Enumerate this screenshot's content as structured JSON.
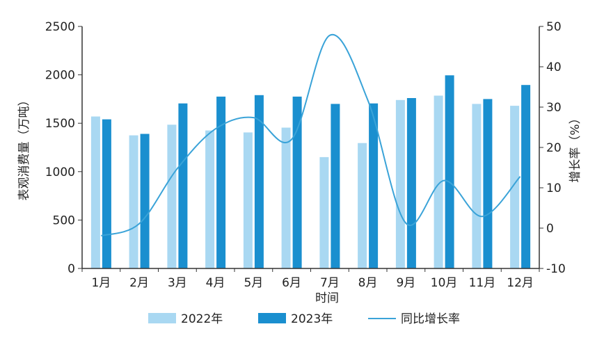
{
  "chart_data": {
    "type": "bar",
    "title": "",
    "xlabel": "时间",
    "ylabel": "表观消费量（万吨）",
    "y2label": "增长率（%）",
    "categories": [
      "1月",
      "2月",
      "3月",
      "4月",
      "5月",
      "6月",
      "7月",
      "8月",
      "9月",
      "10月",
      "11月",
      "12月"
    ],
    "ylim": [
      0,
      2500
    ],
    "yticks": [
      0,
      500,
      1000,
      1500,
      2000,
      2500
    ],
    "y2lim": [
      -10,
      50
    ],
    "y2ticks": [
      -10,
      0,
      10,
      20,
      30,
      40,
      50
    ],
    "grid": false,
    "legend_position": "bottom",
    "series": [
      {
        "name": "2022年",
        "kind": "bar",
        "color": "#a9d8f2",
        "values": [
          1570,
          1375,
          1485,
          1425,
          1405,
          1455,
          1150,
          1295,
          1740,
          1785,
          1700,
          1680
        ]
      },
      {
        "name": "2023年",
        "kind": "bar",
        "color": "#1a8fcf",
        "values": [
          1540,
          1390,
          1705,
          1775,
          1790,
          1775,
          1700,
          1705,
          1760,
          1995,
          1750,
          1895
        ]
      },
      {
        "name": "同比增长率",
        "kind": "line",
        "axis": "right",
        "color": "#3aa3d8",
        "values": [
          -1.9,
          1.1,
          14.8,
          24.6,
          27.4,
          22.0,
          47.8,
          31.7,
          1.2,
          11.8,
          2.9,
          12.8
        ]
      }
    ]
  }
}
